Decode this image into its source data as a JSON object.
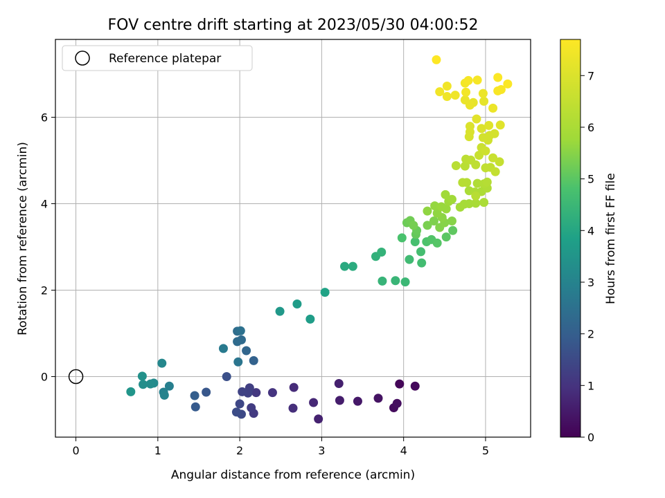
{
  "chart_data": {
    "type": "scatter",
    "title": "FOV centre drift starting at 2023/05/30 04:00:52",
    "xlabel": "Angular distance from reference (arcmin)",
    "ylabel": "Rotation from reference (arcmin)",
    "xlim": [
      -0.25,
      5.55
    ],
    "ylim": [
      -1.4,
      7.8
    ],
    "x_ticks": [
      0,
      1,
      2,
      3,
      4,
      5
    ],
    "y_ticks": [
      0,
      2,
      4,
      6
    ],
    "grid": true,
    "legend": {
      "placement": "top-left",
      "entries": [
        {
          "label": "Reference platepar",
          "marker": "open-circle"
        }
      ]
    },
    "reference_point": {
      "x": 0,
      "y": 0
    },
    "colorbar": {
      "label": "Hours from first FF file",
      "range": [
        0,
        7.7
      ],
      "ticks": [
        0,
        1,
        2,
        3,
        4,
        5,
        6,
        7
      ],
      "colormap": "viridis"
    },
    "points": [
      {
        "x": 3.95,
        "y": -0.17,
        "c": 0.1
      },
      {
        "x": 4.14,
        "y": -0.22,
        "c": 0.15
      },
      {
        "x": 3.88,
        "y": -0.72,
        "c": 0.2
      },
      {
        "x": 3.92,
        "y": -0.62,
        "c": 0.25
      },
      {
        "x": 3.69,
        "y": -0.5,
        "c": 0.35
      },
      {
        "x": 3.44,
        "y": -0.57,
        "c": 0.45
      },
      {
        "x": 3.22,
        "y": -0.55,
        "c": 0.55
      },
      {
        "x": 3.21,
        "y": -0.16,
        "c": 0.6
      },
      {
        "x": 2.96,
        "y": -0.98,
        "c": 0.65
      },
      {
        "x": 2.9,
        "y": -0.6,
        "c": 0.75
      },
      {
        "x": 2.66,
        "y": -0.25,
        "c": 0.85
      },
      {
        "x": 2.65,
        "y": -0.73,
        "c": 0.9
      },
      {
        "x": 2.4,
        "y": -0.37,
        "c": 1.0
      },
      {
        "x": 2.2,
        "y": -0.37,
        "c": 1.1
      },
      {
        "x": 2.17,
        "y": -0.85,
        "c": 1.15
      },
      {
        "x": 2.14,
        "y": -0.72,
        "c": 1.2
      },
      {
        "x": 2.12,
        "y": -0.26,
        "c": 1.25
      },
      {
        "x": 2.1,
        "y": -0.38,
        "c": 1.3
      },
      {
        "x": 2.03,
        "y": -0.35,
        "c": 1.35
      },
      {
        "x": 2.0,
        "y": -0.63,
        "c": 1.45
      },
      {
        "x": 2.02,
        "y": -0.87,
        "c": 1.5
      },
      {
        "x": 1.96,
        "y": -0.82,
        "c": 1.55
      },
      {
        "x": 1.84,
        "y": 0.0,
        "c": 1.65
      },
      {
        "x": 1.59,
        "y": -0.36,
        "c": 1.8
      },
      {
        "x": 1.46,
        "y": -0.7,
        "c": 1.9
      },
      {
        "x": 1.45,
        "y": -0.44,
        "c": 2.0
      },
      {
        "x": 2.17,
        "y": 0.37,
        "c": 2.1
      },
      {
        "x": 2.08,
        "y": 0.6,
        "c": 2.2
      },
      {
        "x": 2.02,
        "y": 0.85,
        "c": 2.3
      },
      {
        "x": 1.97,
        "y": 0.81,
        "c": 2.35
      },
      {
        "x": 1.97,
        "y": 1.05,
        "c": 2.4
      },
      {
        "x": 2.01,
        "y": 1.06,
        "c": 2.5
      },
      {
        "x": 1.98,
        "y": 0.34,
        "c": 2.6
      },
      {
        "x": 1.8,
        "y": 0.65,
        "c": 2.75
      },
      {
        "x": 1.14,
        "y": -0.22,
        "c": 2.9
      },
      {
        "x": 1.07,
        "y": -0.36,
        "c": 2.95
      },
      {
        "x": 1.08,
        "y": -0.43,
        "c": 3.0
      },
      {
        "x": 1.05,
        "y": 0.31,
        "c": 3.1
      },
      {
        "x": 0.95,
        "y": -0.15,
        "c": 3.2
      },
      {
        "x": 0.91,
        "y": -0.17,
        "c": 3.25
      },
      {
        "x": 0.82,
        "y": -0.18,
        "c": 3.3
      },
      {
        "x": 0.81,
        "y": 0.01,
        "c": 3.4
      },
      {
        "x": 0.67,
        "y": -0.35,
        "c": 3.5
      },
      {
        "x": 2.49,
        "y": 1.51,
        "c": 3.6
      },
      {
        "x": 2.7,
        "y": 1.68,
        "c": 3.7
      },
      {
        "x": 2.86,
        "y": 1.33,
        "c": 3.75
      },
      {
        "x": 3.04,
        "y": 1.95,
        "c": 3.9
      },
      {
        "x": 3.28,
        "y": 2.55,
        "c": 4.1
      },
      {
        "x": 3.38,
        "y": 2.55,
        "c": 4.15
      },
      {
        "x": 3.66,
        "y": 2.78,
        "c": 4.3
      },
      {
        "x": 3.73,
        "y": 2.88,
        "c": 4.35
      },
      {
        "x": 3.74,
        "y": 2.21,
        "c": 4.4
      },
      {
        "x": 3.9,
        "y": 2.22,
        "c": 4.45
      },
      {
        "x": 4.02,
        "y": 2.19,
        "c": 4.5
      },
      {
        "x": 4.07,
        "y": 2.71,
        "c": 4.6
      },
      {
        "x": 4.22,
        "y": 2.63,
        "c": 4.65
      },
      {
        "x": 4.21,
        "y": 2.89,
        "c": 4.7
      },
      {
        "x": 4.14,
        "y": 3.12,
        "c": 4.75
      },
      {
        "x": 3.98,
        "y": 3.21,
        "c": 4.8
      },
      {
        "x": 4.28,
        "y": 3.12,
        "c": 4.85
      },
      {
        "x": 4.34,
        "y": 3.17,
        "c": 4.9
      },
      {
        "x": 4.41,
        "y": 3.09,
        "c": 4.95
      },
      {
        "x": 4.52,
        "y": 3.23,
        "c": 5.0
      },
      {
        "x": 4.6,
        "y": 3.38,
        "c": 5.05
      },
      {
        "x": 4.15,
        "y": 3.29,
        "c": 5.1
      },
      {
        "x": 4.16,
        "y": 3.38,
        "c": 5.15
      },
      {
        "x": 4.04,
        "y": 3.56,
        "c": 5.2
      },
      {
        "x": 4.08,
        "y": 3.61,
        "c": 5.25
      },
      {
        "x": 4.12,
        "y": 3.5,
        "c": 5.3
      },
      {
        "x": 4.29,
        "y": 3.5,
        "c": 5.35
      },
      {
        "x": 4.37,
        "y": 3.6,
        "c": 5.4
      },
      {
        "x": 4.44,
        "y": 3.45,
        "c": 5.45
      },
      {
        "x": 4.5,
        "y": 3.56,
        "c": 5.5
      },
      {
        "x": 4.59,
        "y": 3.6,
        "c": 5.5
      },
      {
        "x": 4.47,
        "y": 3.68,
        "c": 5.55
      },
      {
        "x": 4.41,
        "y": 3.78,
        "c": 5.6
      },
      {
        "x": 4.29,
        "y": 3.83,
        "c": 5.6
      },
      {
        "x": 4.38,
        "y": 3.95,
        "c": 5.65
      },
      {
        "x": 4.46,
        "y": 3.93,
        "c": 5.7
      },
      {
        "x": 4.52,
        "y": 3.88,
        "c": 5.7
      },
      {
        "x": 4.55,
        "y": 4.05,
        "c": 5.75
      },
      {
        "x": 4.51,
        "y": 4.21,
        "c": 5.8
      },
      {
        "x": 4.59,
        "y": 4.1,
        "c": 5.8
      },
      {
        "x": 4.69,
        "y": 3.92,
        "c": 5.85
      },
      {
        "x": 4.74,
        "y": 3.99,
        "c": 5.9
      },
      {
        "x": 4.8,
        "y": 4.0,
        "c": 5.9
      },
      {
        "x": 4.88,
        "y": 4.01,
        "c": 5.95
      },
      {
        "x": 4.98,
        "y": 4.03,
        "c": 6.0
      },
      {
        "x": 4.8,
        "y": 4.3,
        "c": 6.0
      },
      {
        "x": 4.87,
        "y": 4.27,
        "c": 6.05
      },
      {
        "x": 4.95,
        "y": 4.28,
        "c": 6.05
      },
      {
        "x": 5.02,
        "y": 4.36,
        "c": 6.1
      },
      {
        "x": 4.9,
        "y": 4.47,
        "c": 6.1
      },
      {
        "x": 4.98,
        "y": 4.46,
        "c": 6.15
      },
      {
        "x": 5.02,
        "y": 4.5,
        "c": 6.2
      },
      {
        "x": 4.77,
        "y": 4.49,
        "c": 6.2
      },
      {
        "x": 4.72,
        "y": 4.49,
        "c": 6.25
      },
      {
        "x": 4.88,
        "y": 4.18,
        "c": 6.25
      },
      {
        "x": 4.64,
        "y": 4.88,
        "c": 6.3
      },
      {
        "x": 4.75,
        "y": 4.87,
        "c": 6.3
      },
      {
        "x": 4.76,
        "y": 5.03,
        "c": 6.35
      },
      {
        "x": 4.82,
        "y": 5.01,
        "c": 6.4
      },
      {
        "x": 4.88,
        "y": 4.9,
        "c": 6.4
      },
      {
        "x": 5.0,
        "y": 4.83,
        "c": 6.45
      },
      {
        "x": 5.06,
        "y": 4.84,
        "c": 6.45
      },
      {
        "x": 5.12,
        "y": 4.74,
        "c": 6.5
      },
      {
        "x": 5.17,
        "y": 4.97,
        "c": 6.55
      },
      {
        "x": 5.09,
        "y": 5.06,
        "c": 6.6
      },
      {
        "x": 4.92,
        "y": 5.12,
        "c": 6.6
      },
      {
        "x": 4.95,
        "y": 5.3,
        "c": 6.65
      },
      {
        "x": 5.0,
        "y": 5.22,
        "c": 6.7
      },
      {
        "x": 5.03,
        "y": 5.47,
        "c": 6.75
      },
      {
        "x": 4.97,
        "y": 5.53,
        "c": 6.8
      },
      {
        "x": 5.05,
        "y": 5.58,
        "c": 6.8
      },
      {
        "x": 5.11,
        "y": 5.62,
        "c": 6.85
      },
      {
        "x": 4.8,
        "y": 5.55,
        "c": 6.9
      },
      {
        "x": 4.81,
        "y": 5.66,
        "c": 6.95
      },
      {
        "x": 4.81,
        "y": 5.79,
        "c": 7.0
      },
      {
        "x": 4.95,
        "y": 5.74,
        "c": 7.0
      },
      {
        "x": 5.04,
        "y": 5.81,
        "c": 7.05
      },
      {
        "x": 5.18,
        "y": 5.82,
        "c": 7.1
      },
      {
        "x": 4.89,
        "y": 5.96,
        "c": 7.15
      },
      {
        "x": 4.98,
        "y": 6.37,
        "c": 7.2
      },
      {
        "x": 4.85,
        "y": 6.34,
        "c": 7.25
      },
      {
        "x": 4.81,
        "y": 6.28,
        "c": 7.3
      },
      {
        "x": 4.75,
        "y": 6.4,
        "c": 7.3
      },
      {
        "x": 5.09,
        "y": 6.21,
        "c": 7.35
      },
      {
        "x": 4.97,
        "y": 6.55,
        "c": 7.35
      },
      {
        "x": 4.63,
        "y": 6.51,
        "c": 7.4
      },
      {
        "x": 4.53,
        "y": 6.48,
        "c": 7.4
      },
      {
        "x": 4.44,
        "y": 6.59,
        "c": 7.45
      },
      {
        "x": 4.53,
        "y": 6.72,
        "c": 7.45
      },
      {
        "x": 4.76,
        "y": 6.58,
        "c": 7.5
      },
      {
        "x": 4.75,
        "y": 6.79,
        "c": 7.5
      },
      {
        "x": 4.79,
        "y": 6.85,
        "c": 7.55
      },
      {
        "x": 4.9,
        "y": 6.86,
        "c": 7.55
      },
      {
        "x": 5.15,
        "y": 6.61,
        "c": 7.6
      },
      {
        "x": 5.19,
        "y": 6.64,
        "c": 7.6
      },
      {
        "x": 5.15,
        "y": 6.92,
        "c": 7.65
      },
      {
        "x": 5.27,
        "y": 6.77,
        "c": 7.65
      },
      {
        "x": 4.4,
        "y": 7.33,
        "c": 7.7
      }
    ]
  }
}
